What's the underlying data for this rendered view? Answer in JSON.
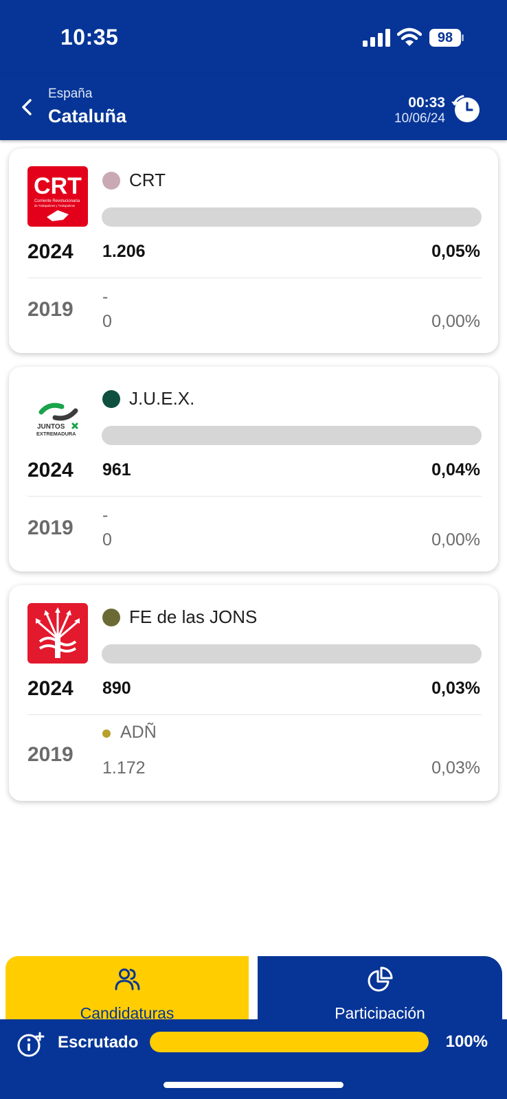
{
  "status_bar": {
    "time": "10:35",
    "battery": "98"
  },
  "header": {
    "country": "España",
    "region": "Cataluña",
    "update_time": "00:33",
    "update_date": "10/06/24"
  },
  "colors": {
    "brand_blue": "#063597",
    "accent_yellow": "#ffcd00"
  },
  "parties": [
    {
      "name": "CRT",
      "dot_color": "#c9a9b3",
      "logo": "crt-logo",
      "logo_text": {
        "title": "CRT",
        "line1": "Corriente Revolucionaria",
        "line2": "de Trabajadores y Trabajadoras"
      },
      "year_current": "2024",
      "votes_current": "1.206",
      "pct_current": "0,05%",
      "year_prev": "2019",
      "prev_name": "-",
      "prev_votes": "0",
      "prev_pct": "0,00%"
    },
    {
      "name": "J.U.E.X.",
      "dot_color": "#0e4f3f",
      "logo": "juntos-extremadura-logo",
      "logo_text": {
        "line1": "JUNTOS",
        "line2": "EXTREMADURA"
      },
      "year_current": "2024",
      "votes_current": "961",
      "pct_current": "0,04%",
      "year_prev": "2019",
      "prev_name": "-",
      "prev_votes": "0",
      "prev_pct": "0,00%"
    },
    {
      "name": "FE de las JONS",
      "dot_color": "#6b6a35",
      "logo": "fe-jons-logo",
      "year_current": "2024",
      "votes_current": "890",
      "pct_current": "0,03%",
      "year_prev": "2019",
      "prev_name": "ADÑ",
      "prev_dot_color": "#b8a02a",
      "prev_votes": "1.172",
      "prev_pct": "0,03%"
    }
  ],
  "tabs": [
    {
      "label": "Candidaturas",
      "icon": "users-icon",
      "active": true
    },
    {
      "label": "Participación",
      "icon": "pie-chart-icon",
      "active": false
    }
  ],
  "scrutiny": {
    "label": "Escrutado",
    "percent_label": "100%",
    "fraction": 1.0
  }
}
